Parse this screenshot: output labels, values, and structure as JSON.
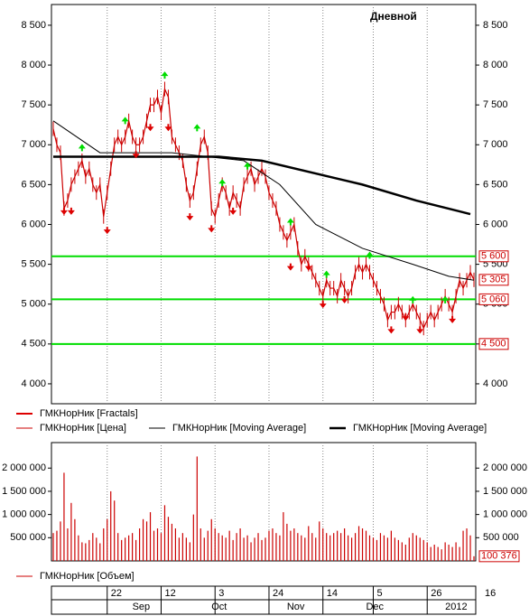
{
  "chart_data": [
    {
      "type": "stock",
      "title": "Дневной",
      "xlim": [
        -0.5,
        117.5
      ],
      "ylim": [
        3750,
        8760
      ],
      "yticks": [
        {
          "value": 4000,
          "label": "4 000"
        },
        {
          "value": 4500,
          "label": "4 500"
        },
        {
          "value": 5000,
          "label": "5 000"
        },
        {
          "value": 5500,
          "label": "5 500"
        },
        {
          "value": 6000,
          "label": "6 000"
        },
        {
          "value": 6500,
          "label": "6 500"
        },
        {
          "value": 7000,
          "label": "7 000"
        },
        {
          "value": 7500,
          "label": "7 500"
        },
        {
          "value": 8000,
          "label": "8 000"
        },
        {
          "value": 8500,
          "label": "8 500"
        }
      ],
      "series": [
        {
          "name": "ГМКНорНик [Цена]",
          "color": "#cc0000",
          "values": [
            7200,
            7000,
            6900,
            6200,
            6300,
            6500,
            6600,
            6700,
            6800,
            6600,
            6700,
            6500,
            6400,
            6500,
            6100,
            6400,
            6700,
            7000,
            7100,
            7000,
            7100,
            7300,
            7100,
            7000,
            7000,
            7100,
            7300,
            7500,
            7500,
            7600,
            7400,
            7700,
            7600,
            7100,
            7000,
            6900,
            6800,
            6500,
            6300,
            6400,
            6700,
            7000,
            7100,
            6900,
            6200,
            6100,
            6300,
            6500,
            6400,
            6200,
            6400,
            6300,
            6200,
            6500,
            6600,
            6700,
            6500,
            6600,
            6700,
            6600,
            6400,
            6300,
            6200,
            6000,
            5900,
            5800,
            5900,
            6000,
            5700,
            5500,
            5600,
            5500,
            5400,
            5300,
            5200,
            5100,
            5300,
            5200,
            5200,
            5100,
            5300,
            5200,
            5100,
            5200,
            5400,
            5500,
            5400,
            5500,
            5400,
            5300,
            5200,
            5100,
            5000,
            4800,
            4900,
            4900,
            5000,
            4900,
            4800,
            4900,
            5000,
            4900,
            4800,
            4700,
            4800,
            4900,
            4800,
            4900,
            5000,
            5100,
            5000,
            4900,
            5100,
            5300,
            5200,
            5300,
            5400,
            5305
          ]
        },
        {
          "name": "ГМКНорНик [Moving Average]",
          "color": "#000000",
          "width": 1,
          "x": [
            0,
            13,
            33,
            53,
            63,
            73,
            86,
            100,
            110,
            117
          ],
          "values": [
            7300,
            6900,
            6900,
            6800,
            6500,
            6000,
            5700,
            5500,
            5350,
            5300
          ]
        },
        {
          "name": "ГМКНорНик [Moving Average]",
          "color": "#000000",
          "width": 2.5,
          "x": [
            0,
            20,
            46,
            58,
            86,
            101,
            116
          ],
          "values": [
            6850,
            6850,
            6850,
            6800,
            6500,
            6300,
            6130
          ]
        }
      ],
      "fractals": {
        "name": "ГМКНорНик [Fractals]",
        "up_color": "#00dd00",
        "down_color": "#dd0000",
        "up": {
          "x": [
            8,
            20,
            31,
            40,
            47,
            54,
            66,
            76,
            88,
            100,
            109
          ],
          "values": [
            7010,
            7350,
            7920,
            7260,
            6570,
            6780,
            6080,
            5420,
            5660,
            5100,
            5100
          ]
        },
        "down": {
          "x": [
            3,
            5,
            15,
            23,
            27,
            32,
            38,
            44,
            50,
            66,
            71,
            75,
            81,
            94,
            98,
            102,
            111
          ],
          "values": [
            6120,
            6120,
            5880,
            6830,
            7170,
            7170,
            6050,
            5900,
            6120,
            5420,
            5420,
            4950,
            5010,
            4630,
            4790,
            4630,
            4760
          ]
        }
      },
      "levels": {
        "color": "#00dd00",
        "values": [
          5600,
          5060,
          4500
        ],
        "value_labels": [
          "5 600",
          "5 060",
          "4 500"
        ]
      },
      "last": {
        "value": 5305,
        "label": "5 305"
      }
    },
    {
      "type": "volume",
      "xlim": [
        -0.5,
        117.5
      ],
      "ylim": [
        0,
        2550000
      ],
      "yticks": [
        {
          "value": 500000,
          "label": "500 000"
        },
        {
          "value": 1000000,
          "label": "1 000 000"
        },
        {
          "value": 1500000,
          "label": "1 500 000"
        },
        {
          "value": 2000000,
          "label": "2 000 000"
        }
      ],
      "series": [
        {
          "name": "ГМКНорНик [Объем]",
          "color": "#cc0000",
          "values": [
            600000,
            650000,
            850000,
            1900000,
            700000,
            1250000,
            900000,
            550000,
            400000,
            380000,
            450000,
            600000,
            500000,
            380000,
            700000,
            900000,
            1500000,
            1300000,
            600000,
            450000,
            500000,
            550000,
            600000,
            450000,
            700000,
            900000,
            850000,
            1050000,
            650000,
            700000,
            600000,
            1200000,
            950000,
            800000,
            700000,
            500000,
            600000,
            500000,
            400000,
            1000000,
            2250000,
            700000,
            500000,
            650000,
            900000,
            700000,
            600000,
            550000,
            500000,
            650000,
            450000,
            600000,
            700000,
            500000,
            550000,
            400000,
            500000,
            600000,
            450000,
            500000,
            650000,
            700000,
            600000,
            550000,
            1050000,
            800000,
            650000,
            700000,
            600000,
            550000,
            500000,
            750000,
            600000,
            500000,
            850000,
            700000,
            600000,
            550000,
            600000,
            650000,
            600000,
            700000,
            550000,
            500000,
            600000,
            750000,
            700000,
            650000,
            550000,
            500000,
            450000,
            600000,
            550000,
            500000,
            650000,
            500000,
            450000,
            400000,
            350000,
            500000,
            600000,
            550000,
            500000,
            450000,
            400000,
            300000,
            350000,
            300000,
            250000,
            400000,
            350000,
            300000,
            400000,
            300000,
            650000,
            700000,
            550000,
            100376
          ]
        }
      ],
      "last": {
        "value": 100376,
        "label": "100 376"
      },
      "xticks": [
        {
          "value": 15,
          "label": "22"
        },
        {
          "value": 30,
          "label": "12"
        },
        {
          "value": 45,
          "label": "3"
        },
        {
          "value": 60,
          "label": "24"
        },
        {
          "value": 75,
          "label": "14"
        },
        {
          "value": 89,
          "label": "5"
        },
        {
          "value": 104,
          "label": "26"
        },
        {
          "value": 119,
          "label": "16"
        }
      ],
      "months": [
        {
          "value": 24,
          "label": "Sep"
        },
        {
          "value": 46,
          "label": "Oct"
        },
        {
          "value": 67,
          "label": "Nov"
        },
        {
          "value": 89,
          "label": "Dec"
        },
        {
          "value": 111,
          "label": "2012"
        }
      ]
    }
  ]
}
